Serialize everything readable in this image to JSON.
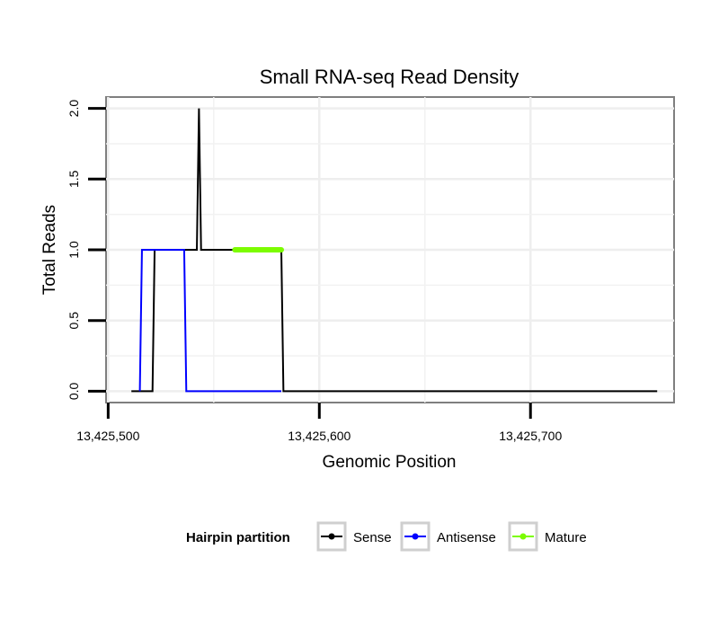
{
  "chart_data": {
    "type": "line",
    "title": "Small RNA-seq Read Density",
    "xlabel": "Genomic Position",
    "ylabel": "Total Reads",
    "xlim": [
      13425499,
      13425768
    ],
    "ylim": [
      -0.08,
      2.08
    ],
    "x_ticks": [
      13425500,
      13425600,
      13425700
    ],
    "x_tick_labels": [
      "13,425,500",
      "13,425,600",
      "13,425,700"
    ],
    "y_ticks": [
      0,
      0.5,
      1,
      1.5,
      2
    ],
    "y_tick_labels": [
      "0.0",
      "0.5",
      "1.0",
      "1.5",
      "2.0"
    ],
    "grid": true,
    "legend": {
      "title": "Hairpin partition",
      "position": "bottom",
      "entries": [
        "Sense",
        "Antisense",
        "Mature"
      ]
    },
    "series": [
      {
        "name": "Sense",
        "color": "#000000",
        "x": [
          13425511,
          13425521,
          13425522,
          13425542,
          13425543,
          13425544,
          13425545,
          13425582,
          13425583,
          13425760
        ],
        "y": [
          0,
          0,
          1,
          1,
          2,
          1,
          1,
          1,
          0,
          0
        ]
      },
      {
        "name": "Antisense",
        "color": "#0000ff",
        "x": [
          13425515,
          13425516,
          13425536,
          13425537,
          13425582
        ],
        "y": [
          0,
          1,
          1,
          0,
          0
        ]
      },
      {
        "name": "Mature",
        "color": "#7cfc00",
        "x": [
          13425560,
          13425582
        ],
        "y": [
          1,
          1
        ]
      }
    ]
  }
}
